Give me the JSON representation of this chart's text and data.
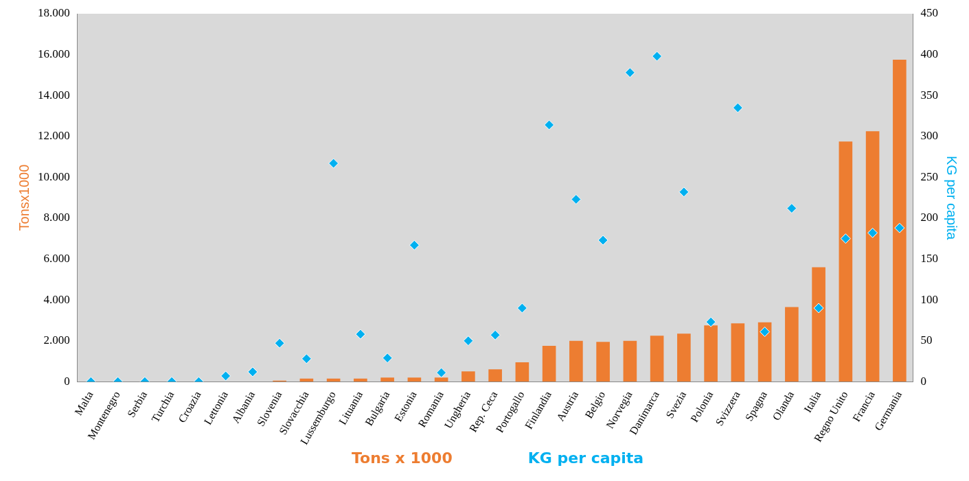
{
  "chart_data": {
    "type": "bar",
    "categories": [
      "Malta",
      "Montenegro",
      "Serbia",
      "Turchia",
      "Croazia",
      "Lettonia",
      "Albania",
      "Slovenia",
      "Slovacchia",
      "Lussemburgo",
      "Lituania",
      "Bulgaria",
      "Estonia",
      "Romania",
      "Ungheria",
      "Rep. Ceca",
      "Portogallo",
      "Finlandia",
      "Austria",
      "Belgio",
      "Norvegia",
      "Danimarca",
      "Svezia",
      "Polonia",
      "Svizzera",
      "Spagna",
      "Olanda",
      "Italia",
      "Regno Unito",
      "Francia",
      "Germania"
    ],
    "series": [
      {
        "name": "Tons x 1000",
        "color": "#ed7d31",
        "values": [
          0,
          0,
          0,
          0,
          0,
          0,
          0,
          50,
          150,
          150,
          150,
          200,
          200,
          200,
          500,
          600,
          950,
          1750,
          2000,
          1950,
          2000,
          2250,
          2350,
          2750,
          2850,
          2900,
          3650,
          5600,
          11750,
          12250,
          15750
        ]
      },
      {
        "name": "KG per capita",
        "type": "scatter",
        "axis": "y2",
        "color": "#00b0f0",
        "marker": "diamond",
        "values": [
          0,
          0,
          0,
          0,
          0,
          7,
          12,
          47,
          28,
          267,
          58,
          29,
          167,
          11,
          50,
          57,
          90,
          314,
          223,
          173,
          378,
          398,
          232,
          73,
          335,
          61,
          212,
          90,
          175,
          182,
          188
        ]
      }
    ],
    "ylabel": "Tonsx1000",
    "y2label": "KG per capita",
    "ylim": [
      0,
      18000
    ],
    "yticks": [
      0,
      {
        "value": 2000,
        "label": "2.000"
      },
      {
        "value": 4000,
        "label": "4.000"
      },
      {
        "value": 6000,
        "label": "6.000"
      },
      {
        "value": 8000,
        "label": "8.000"
      },
      {
        "value": 10000,
        "label": "10.000"
      },
      {
        "value": 12000,
        "label": "12.000"
      },
      {
        "value": 14000,
        "label": "14.000"
      },
      {
        "value": 16000,
        "label": "16.000"
      },
      {
        "value": 18000,
        "label": "18.000"
      }
    ],
    "y2lim": [
      0,
      450
    ],
    "y2ticks": [
      0,
      50,
      100,
      150,
      200,
      250,
      300,
      350,
      400,
      450
    ],
    "grid": false,
    "legend": "bottom"
  }
}
